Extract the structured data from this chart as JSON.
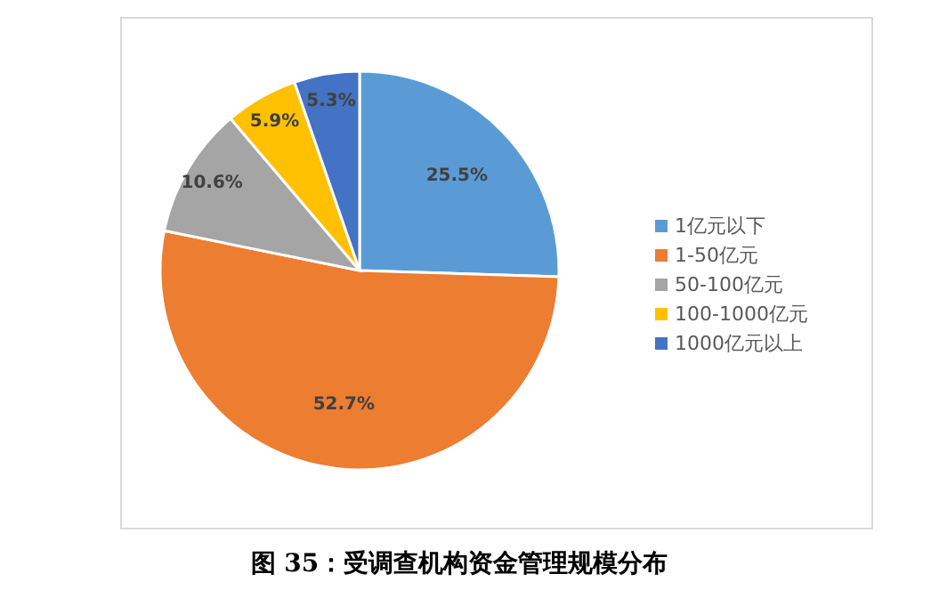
{
  "chart_data": {
    "type": "pie",
    "title": "图 35：受调查机构资金管理规模分布",
    "categories": [
      "1亿元以下",
      "1-50亿元",
      "50-100亿元",
      "100-1000亿元",
      "1000亿元以上"
    ],
    "values": [
      25.5,
      52.7,
      10.6,
      5.9,
      5.3
    ],
    "colors": [
      "#5b9bd5",
      "#ed7d31",
      "#a5a5a5",
      "#ffc000",
      "#4472c4"
    ],
    "value_labels": [
      "25.5%",
      "52.7%",
      "10.6%",
      "5.9%",
      "5.3%"
    ],
    "legend": "right"
  }
}
